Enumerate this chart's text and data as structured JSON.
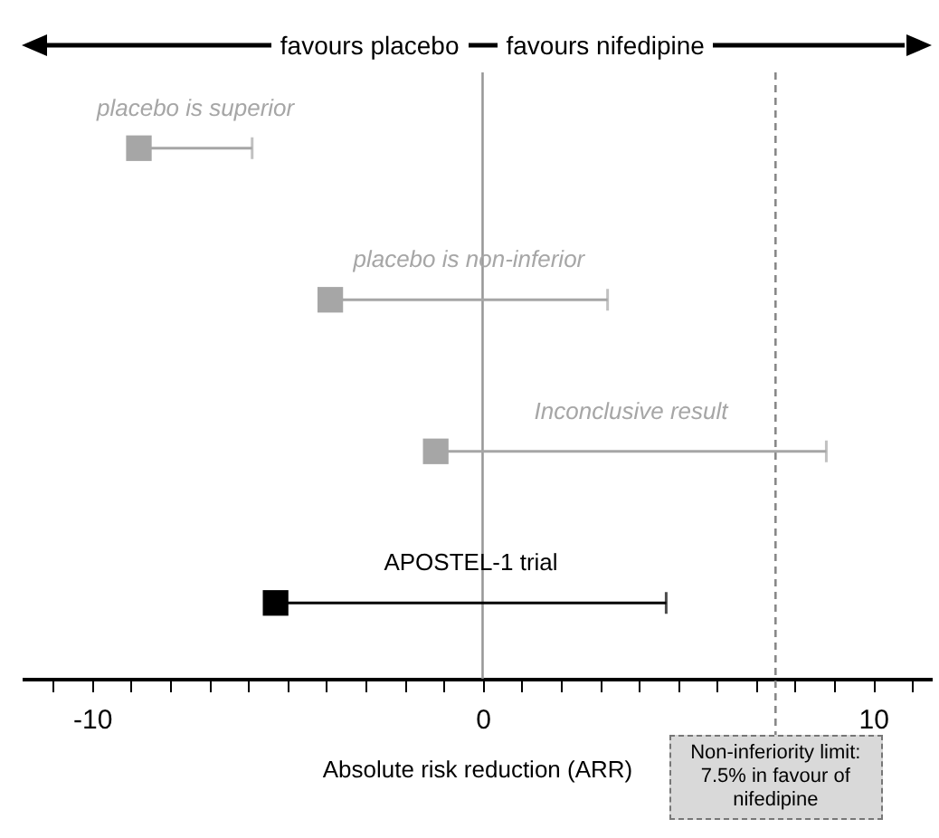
{
  "chart_data": {
    "type": "scatter",
    "orientation": "horizontal",
    "xlabel": "Absolute risk reduction (ARR)",
    "categories": [
      null,
      null,
      null,
      null
    ],
    "values": [
      -8.8,
      -3.9,
      -1.2,
      -5.3
    ],
    "errors": [
      [
        -8.8,
        -5.9
      ],
      [
        -3.9,
        3.2
      ],
      [
        -1.2,
        8.8
      ],
      [
        -5.3,
        4.7
      ]
    ],
    "colors": [
      "#a6a6a6",
      "#a6a6a6",
      "#a6a6a6",
      "#000000"
    ],
    "marker": "square",
    "xlim": [
      -11.8,
      11.5
    ],
    "xticks": [
      {
        "value": -11,
        "label": null
      },
      -10,
      {
        "value": -9,
        "label": null
      },
      {
        "value": -8,
        "label": null
      },
      {
        "value": -7,
        "label": null
      },
      {
        "value": -6,
        "label": null
      },
      {
        "value": -5,
        "label": null
      },
      {
        "value": -4,
        "label": null
      },
      {
        "value": -3,
        "label": null
      },
      {
        "value": -2,
        "label": null
      },
      {
        "value": -1,
        "label": null
      },
      0,
      {
        "value": 1,
        "label": null
      },
      {
        "value": 2,
        "label": null
      },
      {
        "value": 3,
        "label": null
      },
      {
        "value": 4,
        "label": null
      },
      {
        "value": 5,
        "label": null
      },
      {
        "value": 6,
        "label": null
      },
      {
        "value": 7,
        "label": null
      },
      {
        "value": 8,
        "label": null
      },
      {
        "value": 9,
        "label": null
      },
      10,
      {
        "value": 11,
        "label": null
      }
    ],
    "ref_lines": [
      {
        "axis": "x",
        "value": 0,
        "color": "#999999",
        "line_style": "solid"
      },
      {
        "axis": "x",
        "value": 7.5,
        "label": "Non-inferiority limit: 7.5% in favour of nifedipine",
        "color": "#888888",
        "line_style": "dashed"
      }
    ],
    "annotations": [
      "favours placebo",
      "favours nifedipine",
      "placebo is superior",
      "placebo is non-inferior",
      "Inconclusive result",
      "APOSTEL-1 trial"
    ],
    "grid": false
  }
}
